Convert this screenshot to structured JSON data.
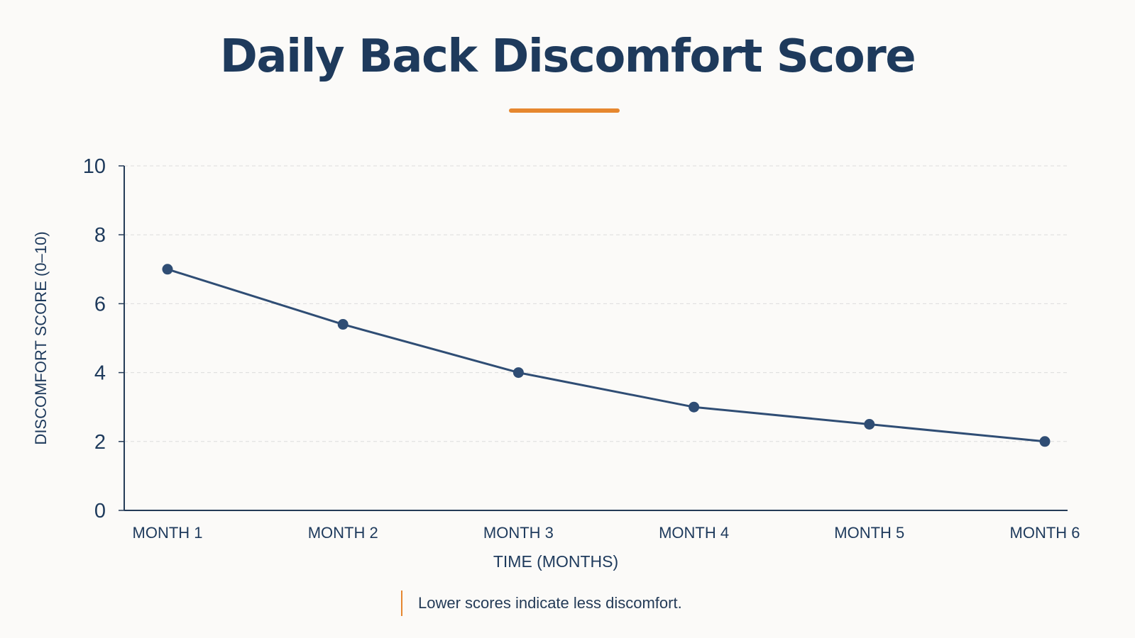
{
  "colors": {
    "title": "#1e3a5c",
    "accent": "#e6872f",
    "line": "#2f4d74",
    "axis": "#243b57",
    "grid": "#dcdcdc",
    "text": "#1e3a5c"
  },
  "note": {
    "text": "Lower scores indicate less discomfort."
  },
  "chart_data": {
    "type": "line",
    "title": "Daily Back Discomfort Score",
    "xlabel": "TIME (MONTHS)",
    "ylabel": "DISCOMFORT SCORE (0–10)",
    "categories": [
      "MONTH 1",
      "MONTH 2",
      "MONTH 3",
      "MONTH 4",
      "MONTH 5",
      "MONTH 6"
    ],
    "series": [
      {
        "values": [
          7.0,
          5.4,
          4.0,
          3.0,
          2.5,
          2.0
        ]
      }
    ],
    "ylim": [
      0,
      10
    ],
    "yticks": [
      0,
      2,
      4,
      6,
      8,
      10
    ],
    "grid": true,
    "markers": true
  }
}
